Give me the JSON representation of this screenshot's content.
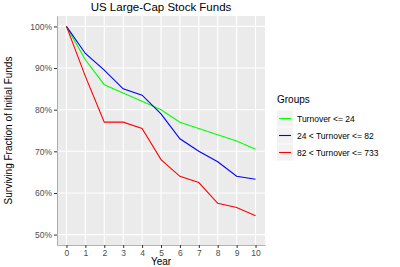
{
  "chart_data": {
    "type": "line",
    "title": "US Large-Cap Stock Funds",
    "xlabel": "Year",
    "ylabel": "Surviving Fraction of Initial Funds",
    "legend_title": "Groups",
    "x": [
      0,
      1,
      2,
      3,
      4,
      5,
      6,
      7,
      8,
      9,
      10
    ],
    "series": [
      {
        "name": "Turnover <= 24",
        "color": "#00ff00",
        "values": [
          100,
          92,
          86,
          84,
          82,
          80,
          77,
          75.5,
          74,
          72.5,
          70.5
        ]
      },
      {
        "name": "24 < Turnover <= 82",
        "color": "#0000ff",
        "values": [
          100,
          93.5,
          89.5,
          85,
          83.5,
          79,
          73,
          70,
          67.5,
          64,
          63.3
        ]
      },
      {
        "name": "82 < Turnover <= 733",
        "color": "#ff0000",
        "values": [
          100,
          88,
          77,
          77,
          75.5,
          68,
          64,
          62.5,
          57.5,
          56.5,
          54.5
        ]
      }
    ],
    "xlim": [
      -0.5,
      10.5
    ],
    "xticks": [
      0,
      1,
      2,
      3,
      4,
      5,
      6,
      7,
      8,
      9,
      10
    ],
    "ylim": [
      47.5,
      102.5
    ],
    "yticks": [
      {
        "value": 50,
        "label": "50%"
      },
      {
        "value": 60,
        "label": "60%"
      },
      {
        "value": 70,
        "label": "70%"
      },
      {
        "value": 80,
        "label": "80%"
      },
      {
        "value": 90,
        "label": "90%"
      },
      {
        "value": 100,
        "label": "100%"
      }
    ],
    "grid": true,
    "legend": "right"
  }
}
